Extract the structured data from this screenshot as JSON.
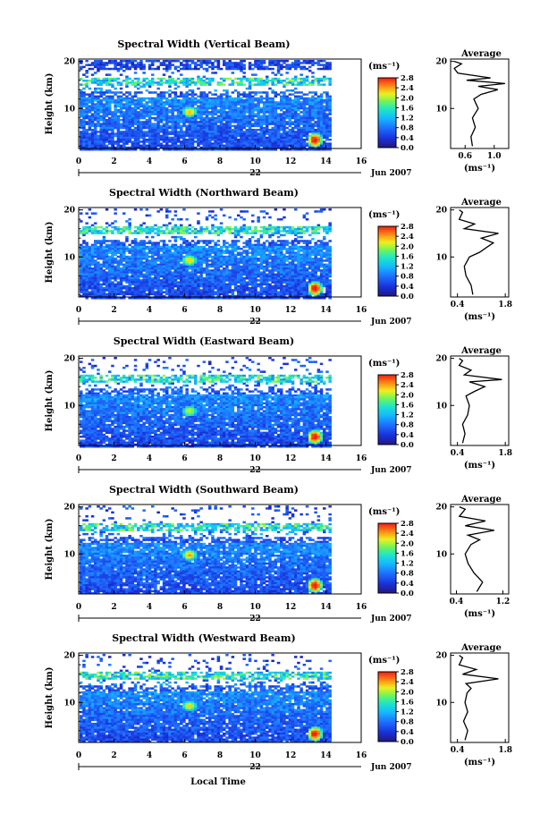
{
  "chart_data": [
    {
      "type": "heatmap",
      "title": "Spectral Width (Vertical Beam)",
      "ylabel": "Height (km)",
      "xticks": [
        "0",
        "2",
        "4",
        "6",
        "8",
        "10",
        "12",
        "14",
        "16"
      ],
      "xlim": [
        0,
        16
      ],
      "data_end": 14.3,
      "yticks": [
        "10",
        "20"
      ],
      "ylim": [
        1.5,
        20.5
      ],
      "date_day": "22",
      "date_month": "Jun 2007",
      "colorbar": {
        "unit": "(ms⁻¹)",
        "labels": [
          "2.8",
          "2.4",
          "2.0",
          "1.6",
          "1.2",
          "0.8",
          "0.4",
          "0.0"
        ]
      },
      "hot_spots": [
        {
          "t": 6.2,
          "h": 9.5,
          "v": 2.3
        },
        {
          "t": 13.3,
          "h": 3.5,
          "v": 2.8
        }
      ],
      "average": {
        "title": "Average",
        "xlabel": "(ms⁻¹)",
        "xticks": [
          "0.6",
          "1.0"
        ],
        "xlim": [
          0.4,
          1.2
        ],
        "yticks": [
          "10",
          "20"
        ],
        "profile": [
          [
            0.7,
            2
          ],
          [
            0.68,
            4
          ],
          [
            0.74,
            6
          ],
          [
            0.7,
            8
          ],
          [
            0.78,
            10
          ],
          [
            0.72,
            12
          ],
          [
            0.82,
            13
          ],
          [
            1.05,
            14
          ],
          [
            0.78,
            14.7
          ],
          [
            1.15,
            15.3
          ],
          [
            0.62,
            16
          ],
          [
            0.95,
            16.5
          ],
          [
            0.5,
            17.5
          ],
          [
            0.45,
            18.5
          ],
          [
            0.55,
            19.5
          ],
          [
            0.45,
            20
          ]
        ]
      }
    },
    {
      "type": "heatmap",
      "title": "Spectral Width (Northward Beam)",
      "ylabel": "Height (km)",
      "xticks": [
        "0",
        "2",
        "4",
        "6",
        "8",
        "10",
        "12",
        "14",
        "16"
      ],
      "xlim": [
        0,
        16
      ],
      "data_end": 14.3,
      "yticks": [
        "10",
        "20"
      ],
      "ylim": [
        1.5,
        20.5
      ],
      "date_day": "22",
      "date_month": "Jun 2007",
      "colorbar": {
        "unit": "(ms⁻¹)",
        "labels": [
          "2.8",
          "2.4",
          "2.0",
          "1.6",
          "1.2",
          "0.8",
          "0.4",
          "0.0"
        ]
      },
      "hot_spots": [
        {
          "t": 6.2,
          "h": 9.5,
          "v": 2.2
        },
        {
          "t": 13.3,
          "h": 3.5,
          "v": 2.8
        }
      ],
      "average": {
        "title": "Average",
        "xlabel": "(ms⁻¹)",
        "xticks": [
          "0.4",
          "1.8"
        ],
        "xlim": [
          0.2,
          1.9
        ],
        "yticks": [
          "10",
          "20"
        ],
        "profile": [
          [
            0.85,
            2
          ],
          [
            0.8,
            4
          ],
          [
            0.65,
            6
          ],
          [
            0.6,
            8
          ],
          [
            0.75,
            10
          ],
          [
            1.05,
            11
          ],
          [
            1.25,
            12
          ],
          [
            1.45,
            13
          ],
          [
            1.1,
            14
          ],
          [
            1.6,
            15
          ],
          [
            0.6,
            16
          ],
          [
            0.9,
            17
          ],
          [
            0.45,
            18
          ],
          [
            0.55,
            19.5
          ],
          [
            0.45,
            20
          ]
        ]
      }
    },
    {
      "type": "heatmap",
      "title": "Spectral Width (Eastward Beam)",
      "ylabel": "Height (km)",
      "xticks": [
        "0",
        "2",
        "4",
        "6",
        "8",
        "10",
        "12",
        "14",
        "16"
      ],
      "xlim": [
        0,
        16
      ],
      "data_end": 14.3,
      "yticks": [
        "10",
        "20"
      ],
      "ylim": [
        1.5,
        20.5
      ],
      "date_day": "22",
      "date_month": "Jun 2007",
      "colorbar": {
        "unit": "(ms⁻¹)",
        "labels": [
          "2.8",
          "2.4",
          "2.0",
          "1.6",
          "1.2",
          "0.8",
          "0.4",
          "0.0"
        ]
      },
      "hot_spots": [
        {
          "t": 6.2,
          "h": 9.0,
          "v": 2.0
        },
        {
          "t": 13.3,
          "h": 3.5,
          "v": 2.8
        }
      ],
      "average": {
        "title": "Average",
        "xlabel": "(ms⁻¹)",
        "xticks": [
          "0.4",
          "1.8"
        ],
        "xlim": [
          0.2,
          1.9
        ],
        "yticks": [
          "10",
          "20"
        ],
        "profile": [
          [
            0.55,
            2
          ],
          [
            0.62,
            4
          ],
          [
            0.55,
            6
          ],
          [
            0.7,
            8
          ],
          [
            0.75,
            10
          ],
          [
            0.65,
            12
          ],
          [
            0.9,
            13
          ],
          [
            1.2,
            14
          ],
          [
            0.75,
            15
          ],
          [
            1.7,
            15.5
          ],
          [
            0.6,
            16.5
          ],
          [
            0.8,
            17.5
          ],
          [
            0.45,
            18.5
          ],
          [
            0.55,
            19.5
          ],
          [
            0.45,
            20
          ]
        ]
      }
    },
    {
      "type": "heatmap",
      "title": "Spectral Width (Southward Beam)",
      "ylabel": "Height (km)",
      "xticks": [
        "0",
        "2",
        "4",
        "6",
        "8",
        "10",
        "12",
        "14",
        "16"
      ],
      "xlim": [
        0,
        16
      ],
      "data_end": 14.3,
      "yticks": [
        "10",
        "20"
      ],
      "ylim": [
        1.5,
        20.5
      ],
      "date_day": "22",
      "date_month": "Jun 2007",
      "colorbar": {
        "unit": "(ms⁻¹)",
        "labels": [
          "2.8",
          "2.4",
          "2.0",
          "1.6",
          "1.2",
          "0.8",
          "0.4",
          "0.0"
        ]
      },
      "hot_spots": [
        {
          "t": 6.2,
          "h": 10.0,
          "v": 2.3
        },
        {
          "t": 13.3,
          "h": 3.5,
          "v": 2.8
        }
      ],
      "average": {
        "title": "Average",
        "xlabel": "(ms⁻¹)",
        "xticks": [
          "0.4",
          "1.2"
        ],
        "xlim": [
          0.3,
          1.3
        ],
        "yticks": [
          "10",
          "20"
        ],
        "profile": [
          [
            0.75,
            2
          ],
          [
            0.85,
            4
          ],
          [
            0.7,
            6
          ],
          [
            0.6,
            8
          ],
          [
            0.55,
            10
          ],
          [
            0.65,
            12
          ],
          [
            0.8,
            13
          ],
          [
            0.6,
            14
          ],
          [
            1.05,
            15
          ],
          [
            0.55,
            16
          ],
          [
            0.9,
            17
          ],
          [
            0.45,
            18
          ],
          [
            0.55,
            19.5
          ],
          [
            0.45,
            20
          ]
        ]
      }
    },
    {
      "type": "heatmap",
      "title": "Spectral Width (Westward Beam)",
      "ylabel": "Height (km)",
      "xlabel": "Local Time",
      "xticks": [
        "0",
        "2",
        "4",
        "6",
        "8",
        "10",
        "12",
        "14",
        "16"
      ],
      "xlim": [
        0,
        16
      ],
      "data_end": 14.3,
      "yticks": [
        "10",
        "20"
      ],
      "ylim": [
        1.5,
        20.5
      ],
      "date_day": "22",
      "date_month": "Jun 2007",
      "colorbar": {
        "unit": "(ms⁻¹)",
        "labels": [
          "2.8",
          "2.4",
          "2.0",
          "1.6",
          "1.2",
          "0.8",
          "0.4",
          "0.0"
        ]
      },
      "hot_spots": [
        {
          "t": 6.2,
          "h": 9.5,
          "v": 2.1
        },
        {
          "t": 13.3,
          "h": 3.5,
          "v": 2.8
        }
      ],
      "average": {
        "title": "Average",
        "xlabel": "(ms⁻¹)",
        "xticks": [
          "0.4",
          "1.8"
        ],
        "xlim": [
          0.2,
          1.9
        ],
        "yticks": [
          "10",
          "20"
        ],
        "profile": [
          [
            0.62,
            2
          ],
          [
            0.7,
            4
          ],
          [
            0.58,
            6
          ],
          [
            0.7,
            8
          ],
          [
            0.62,
            10
          ],
          [
            0.68,
            12
          ],
          [
            0.8,
            13
          ],
          [
            0.65,
            14
          ],
          [
            1.6,
            15
          ],
          [
            0.55,
            16
          ],
          [
            0.95,
            17
          ],
          [
            0.45,
            18
          ],
          [
            0.55,
            19.5
          ],
          [
            0.45,
            20
          ]
        ]
      }
    }
  ]
}
